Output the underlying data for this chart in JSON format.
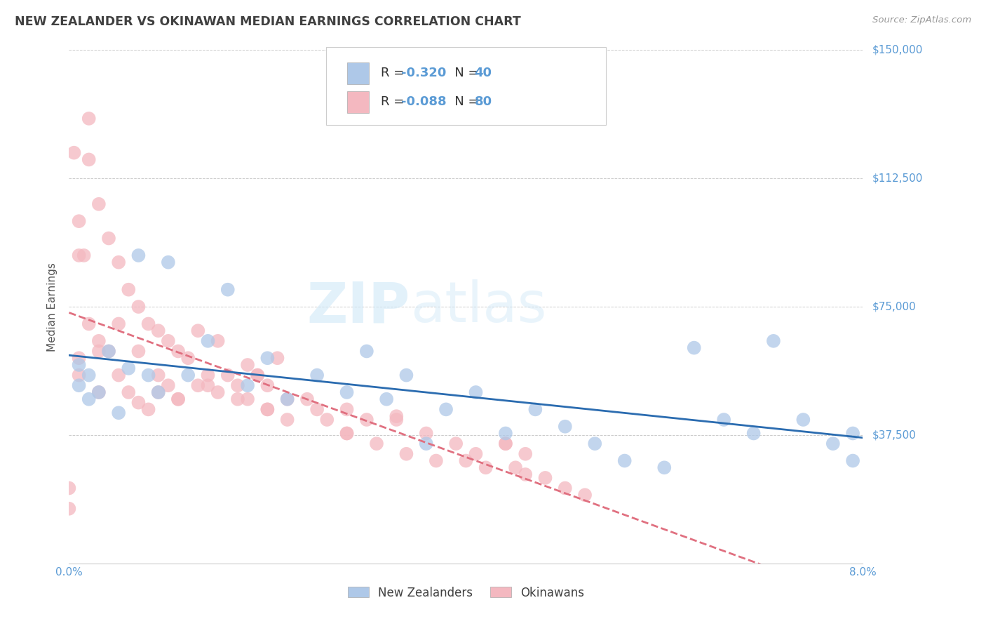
{
  "title": "NEW ZEALANDER VS OKINAWAN MEDIAN EARNINGS CORRELATION CHART",
  "source": "Source: ZipAtlas.com",
  "ylabel": "Median Earnings",
  "xmin": 0.0,
  "xmax": 0.08,
  "ymin": 0,
  "ymax": 150000,
  "yticks": [
    0,
    37500,
    75000,
    112500,
    150000
  ],
  "ytick_labels": [
    "",
    "$37,500",
    "$75,000",
    "$112,500",
    "$150,000"
  ],
  "xtick_positions": [
    0.0,
    0.02,
    0.04,
    0.06,
    0.08
  ],
  "xtick_labels": [
    "0.0%",
    "",
    "",
    "",
    "8.0%"
  ],
  "legend_nz_r": "R = -0.320",
  "legend_nz_n": "N = 40",
  "legend_ok_r": "R = -0.088",
  "legend_ok_n": "N = 80",
  "nz_color": "#aec8e8",
  "ok_color": "#f4b8c0",
  "nz_line_color": "#2b6cb0",
  "ok_line_color": "#e07080",
  "axis_label_color": "#5b9bd5",
  "title_color": "#404040",
  "source_color": "#999999",
  "legend_text_color": "#5b9bd5",
  "background_color": "#ffffff",
  "watermark_color": "#d0e8f8",
  "nz_x": [
    0.001,
    0.001,
    0.002,
    0.002,
    0.003,
    0.004,
    0.005,
    0.006,
    0.007,
    0.008,
    0.009,
    0.01,
    0.012,
    0.014,
    0.016,
    0.018,
    0.02,
    0.022,
    0.025,
    0.028,
    0.03,
    0.032,
    0.034,
    0.036,
    0.038,
    0.041,
    0.044,
    0.047,
    0.05,
    0.053,
    0.056,
    0.06,
    0.063,
    0.066,
    0.069,
    0.071,
    0.074,
    0.077,
    0.079,
    0.079
  ],
  "nz_y": [
    58000,
    52000,
    55000,
    48000,
    50000,
    62000,
    44000,
    57000,
    90000,
    55000,
    50000,
    88000,
    55000,
    65000,
    80000,
    52000,
    60000,
    48000,
    55000,
    50000,
    62000,
    48000,
    55000,
    35000,
    45000,
    50000,
    38000,
    45000,
    40000,
    35000,
    30000,
    28000,
    63000,
    42000,
    38000,
    65000,
    42000,
    35000,
    30000,
    38000
  ],
  "ok_x": [
    0.0005,
    0.001,
    0.001,
    0.0015,
    0.002,
    0.002,
    0.003,
    0.003,
    0.004,
    0.004,
    0.005,
    0.005,
    0.006,
    0.006,
    0.007,
    0.007,
    0.008,
    0.008,
    0.009,
    0.009,
    0.01,
    0.01,
    0.011,
    0.011,
    0.012,
    0.013,
    0.013,
    0.014,
    0.015,
    0.015,
    0.016,
    0.017,
    0.018,
    0.018,
    0.019,
    0.02,
    0.02,
    0.022,
    0.022,
    0.024,
    0.025,
    0.026,
    0.028,
    0.028,
    0.03,
    0.031,
    0.033,
    0.034,
    0.036,
    0.037,
    0.039,
    0.04,
    0.041,
    0.042,
    0.044,
    0.045,
    0.046,
    0.048,
    0.05,
    0.052,
    0.0,
    0.001,
    0.002,
    0.003,
    0.019,
    0.021,
    0.028,
    0.033,
    0.044,
    0.046,
    0.0,
    0.001,
    0.003,
    0.005,
    0.007,
    0.009,
    0.011,
    0.014,
    0.017,
    0.02
  ],
  "ok_y": [
    120000,
    100000,
    60000,
    90000,
    118000,
    70000,
    105000,
    65000,
    95000,
    62000,
    88000,
    55000,
    80000,
    50000,
    75000,
    47000,
    70000,
    45000,
    68000,
    50000,
    65000,
    52000,
    62000,
    48000,
    60000,
    68000,
    52000,
    55000,
    65000,
    50000,
    55000,
    52000,
    58000,
    48000,
    55000,
    52000,
    45000,
    48000,
    42000,
    48000,
    45000,
    42000,
    45000,
    38000,
    42000,
    35000,
    42000,
    32000,
    38000,
    30000,
    35000,
    30000,
    32000,
    28000,
    35000,
    28000,
    26000,
    25000,
    22000,
    20000,
    16000,
    90000,
    130000,
    50000,
    55000,
    60000,
    38000,
    43000,
    35000,
    32000,
    22000,
    55000,
    62000,
    70000,
    62000,
    55000,
    48000,
    52000,
    48000,
    45000
  ]
}
